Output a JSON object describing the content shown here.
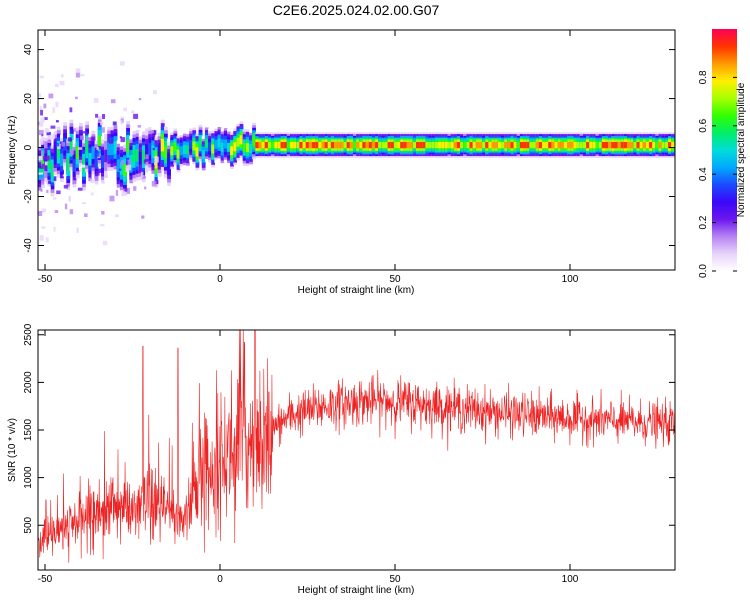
{
  "title": "C2E6.2025.024.02.00.G07",
  "colors": {
    "snr_line": "#ee2222",
    "background": "#ffffff",
    "colormap": [
      "#ffffff",
      "#e7d4fb",
      "#b682f4",
      "#6b16ee",
      "#3a08f8",
      "#1b4bff",
      "#00aaff",
      "#00ddd8",
      "#00ee66",
      "#33ff00",
      "#aaff00",
      "#ffee00",
      "#ff9900",
      "#ff3300",
      "#ff0055"
    ]
  },
  "chart_data": [
    {
      "type": "heatmap",
      "xlabel": "Height of straight line (km)",
      "ylabel": "Frequency (Hz)",
      "xlim": [
        -52,
        130
      ],
      "ylim": [
        -50,
        48
      ],
      "xticks": [
        -50,
        0,
        50,
        100
      ],
      "yticks": [
        -40,
        -20,
        0,
        20,
        40
      ],
      "colorbar": {
        "label": "Normalized spectral amplitude",
        "range": [
          0,
          1
        ],
        "ticks": [
          0.0,
          0.2,
          0.4,
          0.6,
          0.8
        ]
      },
      "ridge": {
        "description_points_x": [
          -52,
          -45,
          -40,
          -35,
          -30,
          -25,
          -20,
          -15,
          -10,
          -5,
          0,
          5,
          10,
          20,
          30,
          50,
          70,
          90,
          100,
          110,
          130
        ],
        "description_points_freq": [
          -5,
          -3,
          -2,
          -2,
          -3,
          -3,
          -2,
          -1,
          0,
          0,
          0,
          1,
          1,
          1,
          1,
          1,
          1,
          1,
          1,
          1,
          1
        ]
      }
    },
    {
      "type": "line",
      "xlabel": "Height of straight line (km)",
      "ylabel": "SNR (10 * v/v)",
      "xlim": [
        -52,
        130
      ],
      "ylim": [
        30,
        2550
      ],
      "xticks": [
        -50,
        0,
        50,
        100
      ],
      "yticks": [
        500,
        1000,
        1500,
        2000,
        2500
      ],
      "series": [
        {
          "mean_profile_x": [
            -52,
            -45,
            -40,
            -35,
            -30,
            -25,
            -20,
            -15,
            -12,
            -10,
            -5,
            0,
            5,
            10,
            15,
            20,
            25,
            30,
            40,
            50,
            60,
            70,
            80,
            90,
            100,
            110,
            120,
            130
          ],
          "mean_profile_y": [
            350,
            450,
            550,
            650,
            700,
            650,
            700,
            650,
            550,
            600,
            1050,
            1200,
            1300,
            1400,
            1500,
            1650,
            1700,
            1750,
            1800,
            1800,
            1760,
            1720,
            1680,
            1650,
            1620,
            1600,
            1580,
            1560
          ],
          "spikes_x": [
            -22,
            -12,
            7,
            10,
            14
          ],
          "spikes_y": [
            2380,
            2360,
            2420,
            2550,
            1900
          ]
        }
      ]
    }
  ]
}
